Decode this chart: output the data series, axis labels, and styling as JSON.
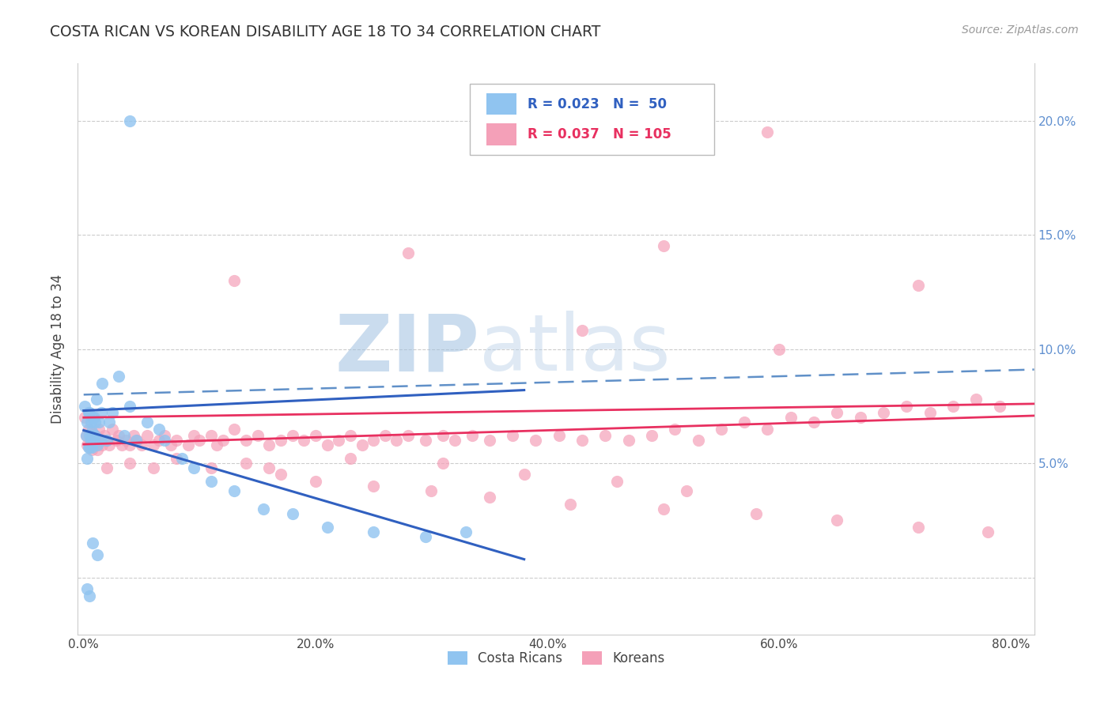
{
  "title": "COSTA RICAN VS KOREAN DISABILITY AGE 18 TO 34 CORRELATION CHART",
  "source": "Source: ZipAtlas.com",
  "ylabel": "Disability Age 18 to 34",
  "xlim": [
    -0.005,
    0.82
  ],
  "ylim": [
    -0.025,
    0.225
  ],
  "xticks": [
    0.0,
    0.2,
    0.4,
    0.6,
    0.8
  ],
  "xtick_labels": [
    "0.0%",
    "20.0%",
    "40.0%",
    "60.0%",
    "80.0%"
  ],
  "yticks": [
    0.0,
    0.05,
    0.1,
    0.15,
    0.2
  ],
  "right_ytick_labels": [
    "",
    "5.0%",
    "10.0%",
    "15.0%",
    "20.0%"
  ],
  "cr_R": 0.023,
  "cr_N": 50,
  "ko_R": 0.037,
  "ko_N": 105,
  "cr_color": "#90C4F0",
  "ko_color": "#F4A0B8",
  "cr_line_color": "#3060C0",
  "ko_line_color": "#E83060",
  "background_color": "#FFFFFF",
  "title_color": "#333333",
  "source_color": "#999999",
  "right_axis_color": "#6090D0",
  "watermark_zip": "ZIP",
  "watermark_atlas": "atlas",
  "cr_x": [
    0.001,
    0.002,
    0.003,
    0.003,
    0.004,
    0.004,
    0.005,
    0.005,
    0.005,
    0.006,
    0.006,
    0.007,
    0.007,
    0.007,
    0.008,
    0.008,
    0.008,
    0.009,
    0.009,
    0.01,
    0.01,
    0.01,
    0.012,
    0.012,
    0.013,
    0.015,
    0.015,
    0.018,
    0.02,
    0.022,
    0.025,
    0.025,
    0.03,
    0.035,
    0.04,
    0.045,
    0.05,
    0.06,
    0.07,
    0.08,
    0.09,
    0.1,
    0.11,
    0.13,
    0.15,
    0.18,
    0.21,
    0.25,
    0.29,
    0.33
  ],
  "cr_y": [
    0.075,
    0.06,
    0.05,
    0.065,
    0.055,
    0.07,
    0.055,
    0.06,
    0.07,
    0.058,
    0.065,
    0.055,
    0.062,
    0.07,
    0.06,
    0.068,
    0.075,
    0.058,
    0.068,
    0.06,
    0.065,
    0.075,
    0.055,
    0.065,
    0.075,
    0.058,
    0.07,
    0.068,
    0.058,
    0.065,
    0.07,
    0.085,
    0.085,
    0.06,
    0.075,
    0.058,
    0.062,
    0.065,
    0.068,
    0.055,
    0.05,
    0.052,
    0.048,
    0.038,
    0.038,
    0.03,
    0.02,
    0.02,
    0.018,
    0.02
  ],
  "ko_x": [
    0.001,
    0.002,
    0.003,
    0.004,
    0.005,
    0.005,
    0.006,
    0.007,
    0.008,
    0.009,
    0.01,
    0.01,
    0.012,
    0.013,
    0.015,
    0.015,
    0.018,
    0.02,
    0.02,
    0.022,
    0.025,
    0.025,
    0.028,
    0.03,
    0.032,
    0.035,
    0.038,
    0.04,
    0.042,
    0.045,
    0.048,
    0.05,
    0.055,
    0.06,
    0.06,
    0.065,
    0.07,
    0.075,
    0.08,
    0.085,
    0.09,
    0.095,
    0.1,
    0.11,
    0.115,
    0.12,
    0.13,
    0.135,
    0.14,
    0.15,
    0.16,
    0.165,
    0.17,
    0.18,
    0.185,
    0.19,
    0.2,
    0.21,
    0.22,
    0.23,
    0.24,
    0.25,
    0.26,
    0.27,
    0.28,
    0.29,
    0.3,
    0.31,
    0.32,
    0.33,
    0.34,
    0.35,
    0.37,
    0.38,
    0.4,
    0.42,
    0.44,
    0.46,
    0.48,
    0.5,
    0.52,
    0.54,
    0.56,
    0.57,
    0.59,
    0.61,
    0.62,
    0.63,
    0.65,
    0.67,
    0.68,
    0.7,
    0.72,
    0.73,
    0.75,
    0.76,
    0.77,
    0.78,
    0.79,
    0.8,
    0.13,
    0.28,
    0.5,
    0.59,
    0.72
  ],
  "ko_y": [
    0.068,
    0.06,
    0.055,
    0.062,
    0.055,
    0.068,
    0.058,
    0.055,
    0.062,
    0.058,
    0.06,
    0.07,
    0.055,
    0.065,
    0.058,
    0.068,
    0.06,
    0.058,
    0.065,
    0.06,
    0.055,
    0.068,
    0.058,
    0.06,
    0.055,
    0.062,
    0.058,
    0.055,
    0.06,
    0.062,
    0.055,
    0.058,
    0.06,
    0.055,
    0.062,
    0.058,
    0.055,
    0.058,
    0.06,
    0.055,
    0.058,
    0.062,
    0.055,
    0.058,
    0.06,
    0.055,
    0.06,
    0.058,
    0.055,
    0.06,
    0.058,
    0.055,
    0.062,
    0.058,
    0.055,
    0.06,
    0.058,
    0.055,
    0.062,
    0.058,
    0.055,
    0.058,
    0.055,
    0.062,
    0.058,
    0.055,
    0.06,
    0.058,
    0.055,
    0.06,
    0.058,
    0.055,
    0.06,
    0.058,
    0.062,
    0.058,
    0.06,
    0.055,
    0.062,
    0.058,
    0.06,
    0.058,
    0.065,
    0.068,
    0.06,
    0.068,
    0.075,
    0.068,
    0.07,
    0.068,
    0.075,
    0.07,
    0.075,
    0.072,
    0.068,
    0.075,
    0.07,
    0.072,
    0.075,
    0.068,
    0.125,
    0.14,
    0.145,
    0.195,
    0.125
  ]
}
